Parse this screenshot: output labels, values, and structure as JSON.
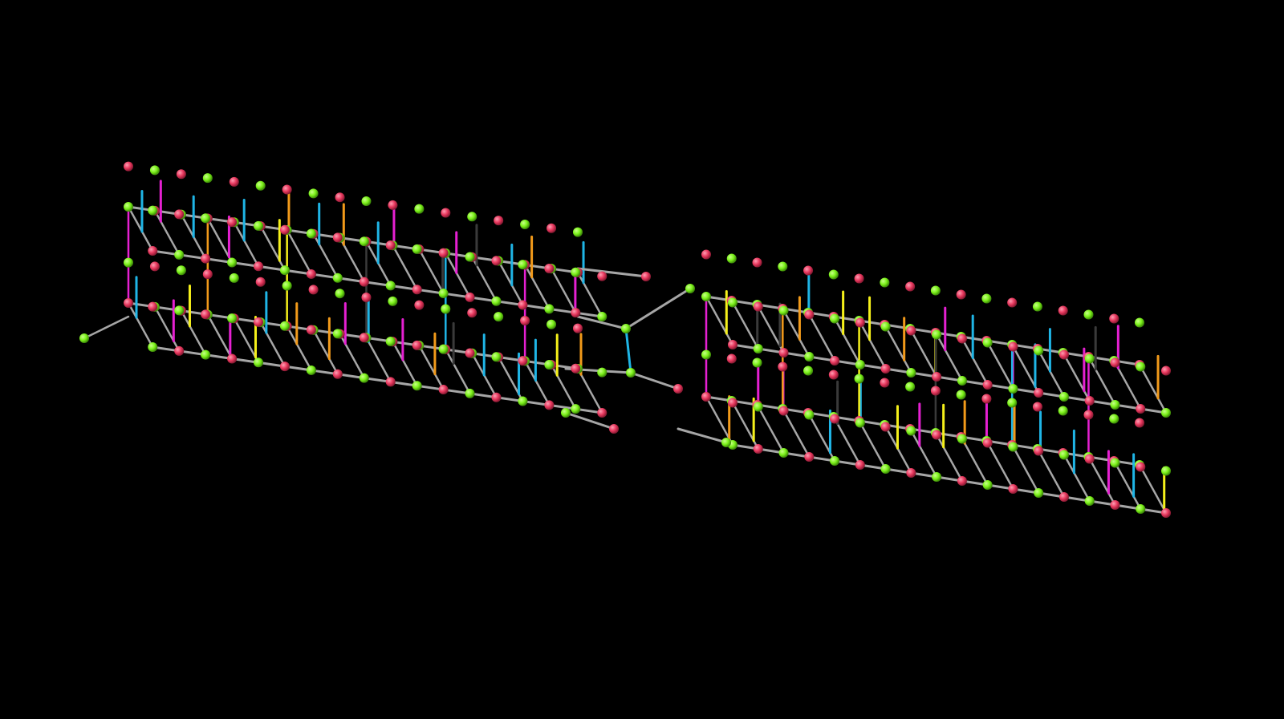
{
  "viewer": {
    "background": "#000000"
  },
  "structure": {
    "kind": "molecular-ladder-lattice",
    "description_tag": "3d-ball-and-stick-view",
    "node_colors": {
      "type_a": "#7cf21a",
      "type_b": "#e8385e"
    },
    "backbone_color": "#a6a6a6",
    "rung_colors": [
      "#e620d2",
      "#f5f01a",
      "#1fb5e6",
      "#f29a1a",
      "#3a3a3a"
    ],
    "ladder_count": 2,
    "columns_per_ladder": 22,
    "center_link_color": "#1fb5e6"
  }
}
